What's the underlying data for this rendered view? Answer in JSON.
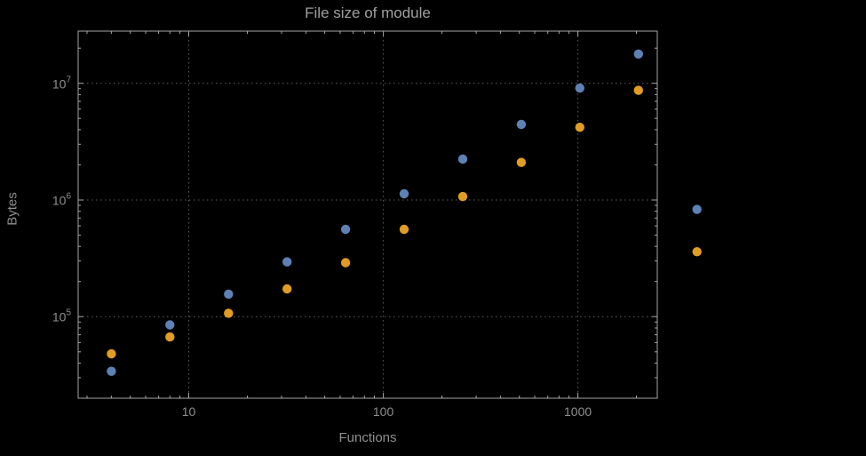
{
  "colors": {
    "background": "#000000",
    "title": "#a0a0a0",
    "text": "#8f8f8f",
    "frame": "#a6a6a6",
    "grid": "#5e5e5e",
    "series_blue": "#5e81b5",
    "series_orange": "#e19c24"
  },
  "chart_data": {
    "type": "scatter",
    "title": "File size of module",
    "xlabel": "Functions",
    "ylabel": "Bytes",
    "x_scale": "log",
    "y_scale": "log",
    "xlim": [
      2.7,
      2560
    ],
    "ylim": [
      20000,
      28000000
    ],
    "grid": "dotted at major ticks",
    "legend": "none",
    "x_ticks": [
      {
        "value": 10,
        "label": "10"
      },
      {
        "value": 100,
        "label": "100"
      },
      {
        "value": 1000,
        "label": "1000"
      }
    ],
    "y_ticks": [
      {
        "value": 100000,
        "base": "10",
        "exp": "5"
      },
      {
        "value": 1000000,
        "base": "10",
        "exp": "6"
      },
      {
        "value": 10000000,
        "base": "10",
        "exp": "7"
      }
    ],
    "x": [
      4,
      8,
      16,
      32,
      64,
      128,
      256,
      512,
      1024,
      2048,
      4096
    ],
    "series": [
      {
        "name": "blue",
        "color": "#5e81b5",
        "values": [
          34000,
          85000,
          156000,
          295000,
          560000,
          1130000,
          2240000,
          4450000,
          9100000,
          17800000,
          830000
        ]
      },
      {
        "name": "orange",
        "color": "#e19c24",
        "values": [
          48000,
          67000,
          107000,
          173000,
          290000,
          560000,
          1070000,
          2100000,
          4200000,
          8700000,
          360000
        ]
      }
    ]
  }
}
